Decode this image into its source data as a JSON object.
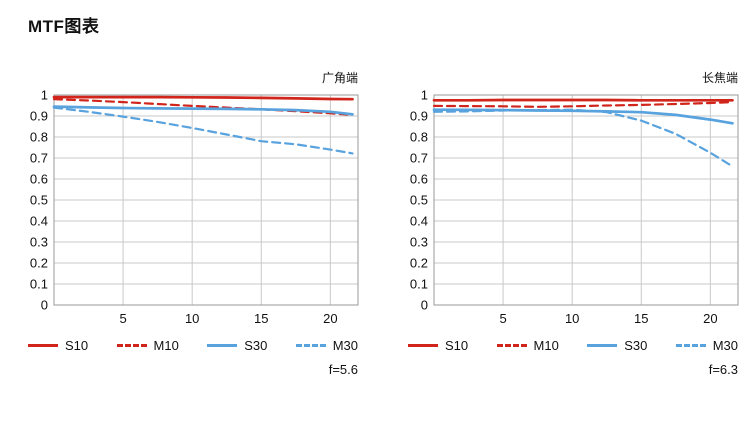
{
  "page": {
    "title": "MTF图表"
  },
  "chart_data": [
    {
      "type": "line",
      "title": "广角端",
      "annotation": "f=5.6",
      "x": [
        0,
        2.5,
        5,
        7.5,
        10,
        12.5,
        15,
        17.5,
        20,
        21.6
      ],
      "xlim": [
        0,
        22
      ],
      "ylim": [
        0,
        1
      ],
      "xticks": [
        5,
        10,
        15,
        20
      ],
      "yticks": [
        0,
        0.1,
        0.2,
        0.3,
        0.4,
        0.5,
        0.6,
        0.7,
        0.8,
        0.9,
        1
      ],
      "grid": true,
      "legend_position": "bottom",
      "series": [
        {
          "name": "S10",
          "color": "#d1251b",
          "dash": "solid",
          "values": [
            0.99,
            0.99,
            0.99,
            0.99,
            0.989,
            0.988,
            0.986,
            0.984,
            0.981,
            0.98
          ]
        },
        {
          "name": "M10",
          "color": "#d1251b",
          "dash": "dashed",
          "values": [
            0.98,
            0.974,
            0.966,
            0.957,
            0.948,
            0.94,
            0.932,
            0.923,
            0.913,
            0.905
          ]
        },
        {
          "name": "S30",
          "color": "#58a2de",
          "dash": "solid",
          "values": [
            0.945,
            0.941,
            0.938,
            0.936,
            0.935,
            0.934,
            0.932,
            0.928,
            0.92,
            0.908
          ]
        },
        {
          "name": "M30",
          "color": "#58a2de",
          "dash": "dashed",
          "values": [
            0.94,
            0.92,
            0.897,
            0.872,
            0.843,
            0.812,
            0.78,
            0.765,
            0.74,
            0.722
          ]
        }
      ]
    },
    {
      "type": "line",
      "title": "长焦端",
      "annotation": "f=6.3",
      "x": [
        0,
        2.5,
        5,
        7.5,
        10,
        12.5,
        15,
        17.5,
        20,
        21.6
      ],
      "xlim": [
        0,
        22
      ],
      "ylim": [
        0,
        1
      ],
      "xticks": [
        5,
        10,
        15,
        20
      ],
      "yticks": [
        0,
        0.1,
        0.2,
        0.3,
        0.4,
        0.5,
        0.6,
        0.7,
        0.8,
        0.9,
        1
      ],
      "grid": true,
      "legend_position": "bottom",
      "series": [
        {
          "name": "S10",
          "color": "#d1251b",
          "dash": "solid",
          "values": [
            0.975,
            0.975,
            0.976,
            0.976,
            0.976,
            0.976,
            0.975,
            0.975,
            0.975,
            0.975
          ]
        },
        {
          "name": "M10",
          "color": "#d1251b",
          "dash": "dashed",
          "values": [
            0.948,
            0.947,
            0.946,
            0.944,
            0.946,
            0.95,
            0.953,
            0.957,
            0.962,
            0.966
          ]
        },
        {
          "name": "S30",
          "color": "#58a2de",
          "dash": "solid",
          "values": [
            0.93,
            0.929,
            0.928,
            0.926,
            0.925,
            0.922,
            0.918,
            0.905,
            0.883,
            0.865
          ]
        },
        {
          "name": "M30",
          "color": "#58a2de",
          "dash": "dashed",
          "values": [
            0.92,
            0.922,
            0.926,
            0.928,
            0.93,
            0.918,
            0.878,
            0.815,
            0.725,
            0.66
          ]
        }
      ]
    }
  ],
  "style": {
    "grid_color": "#c9c9c9",
    "border_color": "#9a9a9a",
    "red": "#d1251b",
    "blue": "#58a2de"
  }
}
